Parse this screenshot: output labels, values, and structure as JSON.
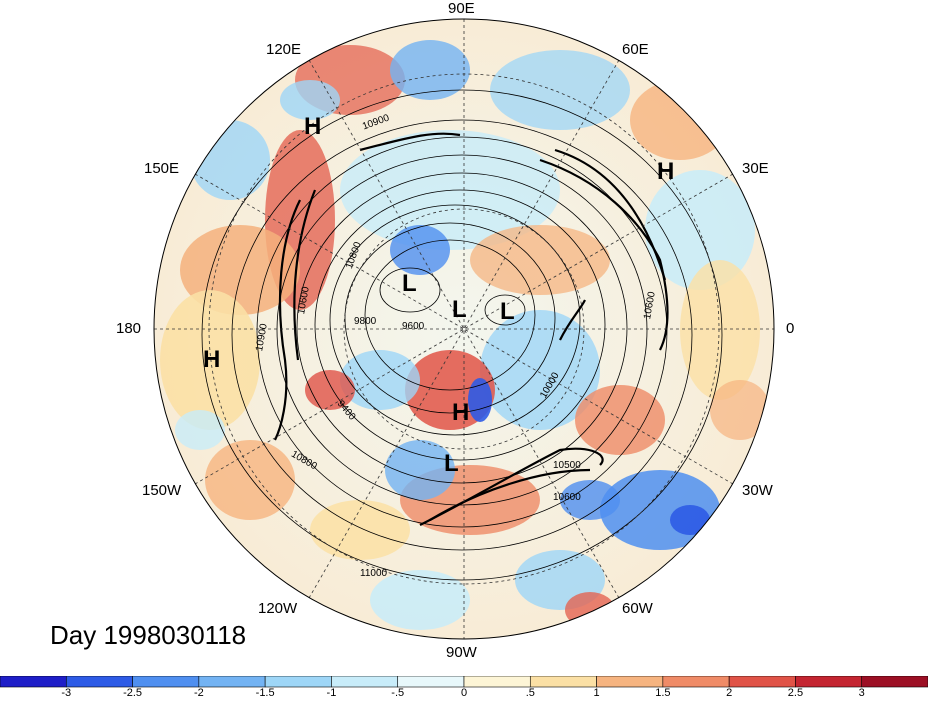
{
  "map": {
    "longitude_labels": [
      {
        "id": "lon-90e",
        "text": "90E"
      },
      {
        "id": "lon-60e",
        "text": "60E"
      },
      {
        "id": "lon-30e",
        "text": "30E"
      },
      {
        "id": "lon-0",
        "text": "0"
      },
      {
        "id": "lon-30w",
        "text": "30W"
      },
      {
        "id": "lon-60w",
        "text": "60W"
      },
      {
        "id": "lon-90w",
        "text": "90W"
      },
      {
        "id": "lon-120w",
        "text": "120W"
      },
      {
        "id": "lon-150w",
        "text": "150W"
      },
      {
        "id": "lon-180",
        "text": "180"
      },
      {
        "id": "lon-150e",
        "text": "150E"
      },
      {
        "id": "lon-120e",
        "text": "120E"
      }
    ],
    "pressure_centers": [
      {
        "id": "h1",
        "text": "H"
      },
      {
        "id": "h2",
        "text": "H"
      },
      {
        "id": "h3",
        "text": "H"
      },
      {
        "id": "h4",
        "text": "H"
      },
      {
        "id": "l1",
        "text": "L"
      },
      {
        "id": "l2",
        "text": "L"
      },
      {
        "id": "l3",
        "text": "L"
      },
      {
        "id": "l4",
        "text": "L"
      }
    ],
    "contour_labels": [
      "10900",
      "10800",
      "10900",
      "10600",
      "9800",
      "9600",
      "10000",
      "10600",
      "10800",
      "11000",
      "9400",
      "10500",
      "10600"
    ],
    "day_text": "Day 1998030118"
  },
  "colorbar": {
    "ticks": [
      "-3",
      "-2.5",
      "-2",
      "-1.5",
      "-1",
      "-.5",
      "0",
      ".5",
      "1",
      "1.5",
      "2",
      "2.5",
      "3"
    ],
    "colors": [
      "#1e1ec8",
      "#2d5be6",
      "#4f8ff0",
      "#73b3f3",
      "#9ed6f7",
      "#c8ecf9",
      "#e8f8fb",
      "#fdf5d6",
      "#fbe0a5",
      "#f6b480",
      "#ef8b67",
      "#e05347",
      "#c42531",
      "#9c0f24"
    ]
  }
}
